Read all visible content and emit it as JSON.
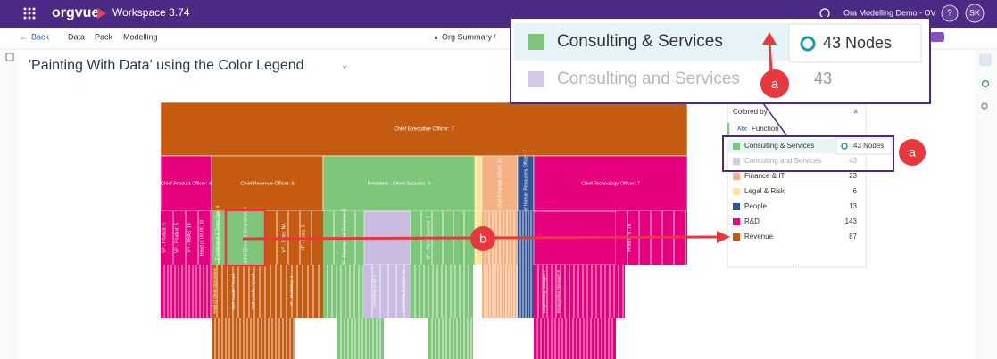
{
  "topbar": {
    "brand": "orgvue",
    "workspace": "Workspace 3.74",
    "demo": "Ora Modelling Demo - OV",
    "help": "?",
    "user": "SK"
  },
  "nav": {
    "back": "Back",
    "items": [
      "Data",
      "Pack",
      "Modelling"
    ],
    "breadcrumb": "Org Summary",
    "separator": "/"
  },
  "title": "'Painting With Data' using the Color Legend",
  "org": {
    "ceo": "Chief Executive Officer: 7",
    "level2": [
      "Chief Product Officer: 4",
      "Chief Revenue Officer: 6",
      "President - Client Success: 6",
      "Chief Financial Officer: 21",
      "Chief Human Resources Officer: 7",
      "Chief Technology Officer: 7"
    ],
    "level3": [
      "VP - Product: 5",
      "VP - Product: 5",
      "VP - DBAS: 10",
      "Head of UI/UX: 10",
      "VP - Enablement & Sales Ops: 4",
      "Head of Demand Generation: 4",
      "VP - Sales: NA",
      "VP - Sales: 5",
      "VP - Professional Services: 3",
      "VP - Client Success: 7",
      "Head of IT: 16"
    ],
    "level4": [
      "Head of Client Operations",
      "SDR Leader / Coach",
      "SDR Leader / Coach",
      "VP - Marketing: 3",
      "Consulting Lead: 5",
      "Consulting Manager: 14",
      "Engineering Manager: 7",
      "Engineering Manager: 8"
    ]
  },
  "legend": {
    "heading": "Colored by",
    "close": "×",
    "field": "Function",
    "rows": [
      {
        "label": "Consulting & Services",
        "nodes": "43 Nodes",
        "color": "#7dc67a"
      },
      {
        "label": "Consulting and Services",
        "count": 43,
        "color": "#d4c8e6"
      },
      {
        "label": "Finance & IT",
        "count": 23,
        "color": "#f4b183"
      },
      {
        "label": "Legal & Risk",
        "count": 6,
        "color": "#ffe699"
      },
      {
        "label": "People",
        "count": 13,
        "color": "#2f5597"
      },
      {
        "label": "R&D",
        "count": 143,
        "color": "#e6007e"
      },
      {
        "label": "Revenue",
        "count": 87,
        "color": "#c55a11"
      }
    ],
    "more": "..."
  },
  "callout": {
    "row1": "Consulting & Services",
    "nodes": "43 Nodes",
    "row2": "Consulting and Services",
    "count": 43,
    "marker": "a"
  },
  "annotations": [
    "a",
    "b"
  ]
}
